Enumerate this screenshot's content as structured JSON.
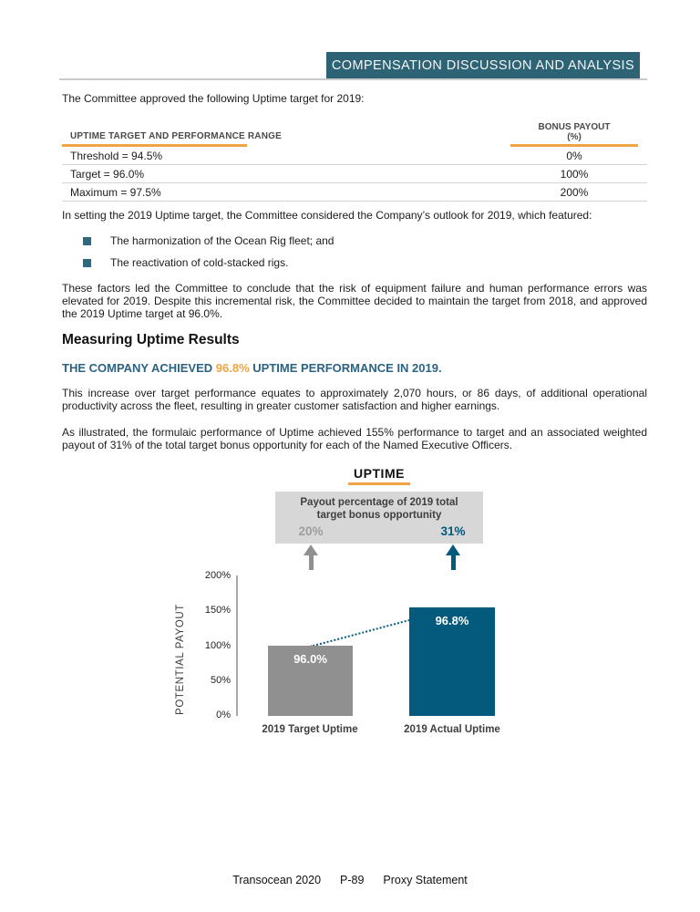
{
  "banner": "COMPENSATION DISCUSSION AND ANALYSIS",
  "intro": "The Committee approved the following Uptime target for 2019:",
  "table": {
    "col1_header": "UPTIME TARGET AND PERFORMANCE RANGE",
    "col2_header_line1": "BONUS PAYOUT",
    "col2_header_line2": "(%)",
    "rows": [
      {
        "range": "Threshold = 94.5%",
        "payout": "0%"
      },
      {
        "range": "Target = 96.0%",
        "payout": "100%"
      },
      {
        "range": "Maximum = 97.5%",
        "payout": "200%"
      }
    ]
  },
  "body": {
    "para_outlook": "In setting the 2019 Uptime target, the Committee considered the Company’s outlook for 2019, which featured:",
    "bullets": [
      "The harmonization of the Ocean Rig fleet; and",
      "The reactivation of cold-stacked rigs."
    ],
    "para_factors": "These factors led the Committee to conclude that the risk of equipment failure and human performance errors was elevated for 2019. Despite this incremental risk, the Committee decided to maintain the target from 2018, and approved the 2019 Uptime target at 96.0%.",
    "heading": "Measuring Uptime Results",
    "statement_prefix": "THE COMPANY ACHIEVED ",
    "statement_highlight": "96.8%",
    "statement_suffix": " UPTIME PERFORMANCE IN 2019.",
    "para_increase": "This increase over target performance equates to approximately 2,070 hours, or 86 days, of additional operational productivity across the fleet, resulting in greater customer satisfaction and higher earnings.",
    "para_illustrated": "As illustrated, the formulaic performance of Uptime achieved 155% performance to target and an associated weighted payout of 31% of the total target bonus opportunity for each of the Named Executive Officers."
  },
  "chart_data": {
    "type": "bar",
    "title": "UPTIME",
    "ylabel": "POTENTIAL PAYOUT",
    "ylim": [
      0,
      200
    ],
    "yticks": [
      "0%",
      "50%",
      "100%",
      "150%",
      "200%"
    ],
    "grid": false,
    "categories": [
      "2019 Target Uptime",
      "2019 Actual Uptime"
    ],
    "values": [
      100,
      155
    ],
    "bar_labels": [
      "96.0%",
      "96.8%"
    ],
    "bar_colors": [
      "#909090",
      "#045a7c"
    ],
    "annotation_box": {
      "label": "Payout percentage of 2019 total target bonus opportunity",
      "values": [
        "20%",
        "31%"
      ],
      "value_colors": [
        "#9e9e9e",
        "#045a7c"
      ]
    },
    "trend_line": {
      "style": "dotted",
      "color": "#045a7c",
      "from_percent": 100,
      "to_percent": 155
    }
  },
  "colors": {
    "banner_teal": "#2d6375",
    "heading_teal": "#2b6383",
    "accent_orange": "#f0a445",
    "bar_gray": "#909090",
    "bar_teal": "#045a7c",
    "bullet_teal": "#2b6a80"
  },
  "footer": {
    "company": "Transocean 2020",
    "page_number": "P-89",
    "label": "Proxy Statement"
  }
}
